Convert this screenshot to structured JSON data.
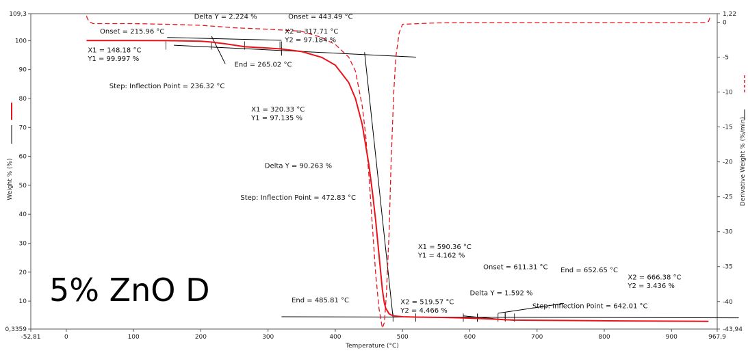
{
  "chart_data": {
    "type": "line",
    "sample_label": "5% ZnO D",
    "xlabel": "Temperature (°C)",
    "ylabel": "Weight % (%)",
    "y2label": "Derivative Weight % (%/min)",
    "xlim": [
      -52.81,
      967.9
    ],
    "ylim": [
      0.3359,
      109.3
    ],
    "y2lim": [
      -43.94,
      1.22
    ],
    "x_ticks": [
      -52.81,
      0,
      100,
      200,
      300,
      400,
      500,
      600,
      700,
      800,
      900,
      967.9
    ],
    "x_tick_labels": [
      "-52,81",
      "0",
      "100",
      "200",
      "300",
      "400",
      "500",
      "600",
      "700",
      "800",
      "900",
      "967,9"
    ],
    "y_ticks": [
      0.3359,
      10,
      20,
      30,
      40,
      50,
      60,
      70,
      80,
      90,
      100,
      109.3
    ],
    "y_tick_labels": [
      "0,3359",
      "10",
      "20",
      "30",
      "40",
      "50",
      "60",
      "70",
      "80",
      "90",
      "100",
      "109,3"
    ],
    "y2_ticks": [
      1.22,
      0,
      -5,
      -10,
      -15,
      -20,
      -25,
      -30,
      -35,
      -40,
      -43.94
    ],
    "y2_tick_labels": [
      "1,22",
      "0",
      "-5",
      "-10",
      "-15",
      "-20",
      "-25",
      "-30",
      "-35",
      "-40",
      "-43,94"
    ],
    "series": [
      {
        "name": "Weight %",
        "axis": "left",
        "color": "#e8141c",
        "style": "solid",
        "x": [
          30,
          100,
          150,
          200,
          215.96,
          236.32,
          265,
          300,
          320,
          350,
          380,
          400,
          420,
          430,
          440,
          450,
          455,
          460,
          465,
          470,
          472.83,
          475,
          480,
          485.81,
          500,
          519.57,
          560,
          590.36,
          611.31,
          642.01,
          652.65,
          666.38,
          750,
          850,
          955
        ],
        "y": [
          100.0,
          100.0,
          99.99,
          99.8,
          99.5,
          98.9,
          97.9,
          97.4,
          97.1,
          96.2,
          94.2,
          91.5,
          85.5,
          80.0,
          71.0,
          57.0,
          48.0,
          38.0,
          26.0,
          14.0,
          9.5,
          7.5,
          5.6,
          4.9,
          4.6,
          4.466,
          4.35,
          4.162,
          4.0,
          3.7,
          3.55,
          3.436,
          3.3,
          3.1,
          3.0
        ]
      },
      {
        "name": "Derivative Weight %",
        "axis": "right",
        "color": "#e8141c",
        "style": "dashed",
        "x": [
          30,
          31,
          34,
          40,
          60,
          100,
          150,
          200,
          250,
          300,
          350,
          380,
          400,
          420,
          430,
          440,
          445,
          450,
          455,
          460,
          465,
          470,
          473,
          476,
          480,
          483,
          487,
          490,
          495,
          500,
          550,
          600,
          700,
          800,
          900,
          950,
          955,
          958
        ],
        "y": [
          0.9,
          0.6,
          0.05,
          -0.2,
          -0.2,
          -0.2,
          -0.3,
          -0.45,
          -0.8,
          -1.0,
          -1.3,
          -2.2,
          -3.2,
          -5.0,
          -7.0,
          -12.0,
          -16.0,
          -22.0,
          -29.0,
          -36.0,
          -41.0,
          -43.8,
          -43.0,
          -39.0,
          -30.0,
          -20.0,
          -10.0,
          -5.0,
          -1.5,
          -0.3,
          -0.1,
          -0.05,
          -0.05,
          -0.05,
          -0.05,
          -0.05,
          0.1,
          0.9
        ]
      }
    ],
    "annotations": [
      "Delta Y = 2.224 %",
      "Onset = 443.49 °C",
      "Onset = 215.96 °C",
      "X2 = 317.71 °C",
      "Y2 = 97.184 %",
      "X1 = 148.18 °C",
      "Y1 = 99.997 %",
      "End = 265.02 °C",
      "Step: Inflection Point = 236.32 °C",
      "X1 = 320.33 °C",
      "Y1 = 97.135 %",
      "Delta Y = 90.263 %",
      "Step: Inflection Point = 472.83 °C",
      "X1 = 590.36 °C",
      "Y1 = 4.162 %",
      "Onset = 611.31 °C",
      "End = 652.65 °C",
      "X2 = 666.38 °C",
      "Y2 = 3.436 %",
      "Delta Y = 1.592 %",
      "End = 485.81 °C",
      "X2 = 519.57 °C",
      "Y2 = 4.466 %",
      "Step: Inflection Point = 642.01 °C"
    ]
  }
}
